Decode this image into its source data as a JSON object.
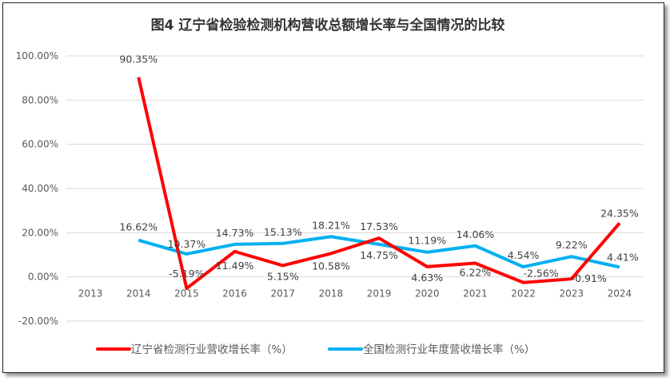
{
  "chart_data": {
    "type": "line",
    "title": "图4  辽宁省检验检测机构营收总额增长率与全国情况的比较",
    "categories": [
      "2013",
      "2014",
      "2015",
      "2016",
      "2017",
      "2018",
      "2019",
      "2020",
      "2021",
      "2022",
      "2023",
      "2024"
    ],
    "ylim": [
      -20,
      100
    ],
    "yticks": [
      "-20.00%",
      "0.00%",
      "20.00%",
      "40.00%",
      "60.00%",
      "80.00%",
      "100.00%"
    ],
    "grid": true,
    "legend_position": "bottom",
    "series": [
      {
        "name": "辽宁省检测行业营收增长率（%）",
        "color": "#ff0000",
        "values": [
          null,
          90.35,
          -5.19,
          11.49,
          5.15,
          10.58,
          17.53,
          4.63,
          6.22,
          -2.56,
          -0.91,
          24.35
        ],
        "labels": [
          "",
          "90.35%",
          "-5.19%",
          "11.49%",
          "5.15%",
          "10.58%",
          "17.53%",
          "4.63%",
          "6.22%",
          "-2.56%",
          "-0.91%",
          "24.35%"
        ]
      },
      {
        "name": "全国检测行业年度营收增长率（%）",
        "color": "#00b0f0",
        "values": [
          null,
          16.62,
          10.37,
          14.73,
          15.13,
          18.21,
          14.75,
          11.19,
          14.06,
          4.54,
          9.22,
          4.41
        ],
        "labels": [
          "",
          "16.62%",
          "10.37%",
          "14.73%",
          "15.13%",
          "18.21%",
          "14.75%",
          "11.19%",
          "14.06%",
          "4.54%",
          "9.22%",
          "4.41%"
        ]
      }
    ]
  }
}
